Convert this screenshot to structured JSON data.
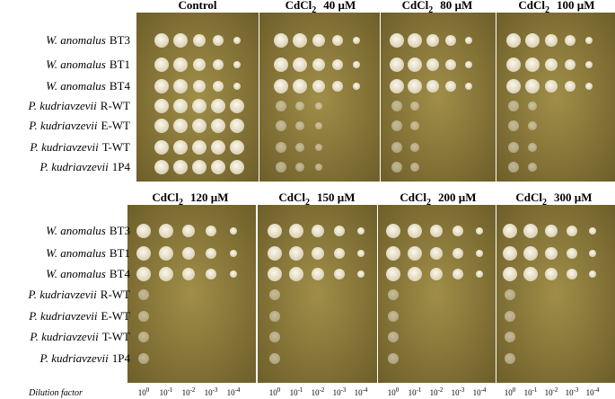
{
  "panels": [
    {
      "label": {
        "text": "Control"
      }
    },
    {
      "label": {
        "compound": "CdCl",
        "subscript": "2",
        "concentration": "40 µM"
      }
    },
    {
      "label": {
        "compound": "CdCl",
        "subscript": "2",
        "concentration": "80 µM"
      }
    },
    {
      "label": {
        "compound": "CdCl",
        "subscript": "2",
        "concentration": "100 µM"
      }
    },
    {
      "label": {
        "compound": "CdCl",
        "subscript": "2",
        "concentration": "120 µM"
      }
    },
    {
      "label": {
        "compound": "CdCl",
        "subscript": "2",
        "concentration": "150 µM"
      }
    },
    {
      "label": {
        "compound": "CdCl",
        "subscript": "2",
        "concentration": "200 µM"
      }
    },
    {
      "label": {
        "compound": "CdCl",
        "subscript": "2",
        "concentration": "300 µM"
      }
    }
  ],
  "strains": [
    {
      "species": "W. anomalus",
      "strain": "BT3"
    },
    {
      "species": "W. anomalus",
      "strain": "BT1"
    },
    {
      "species": "W. anomalus",
      "strain": "BT4"
    },
    {
      "species": "P. kudriavzevii",
      "strain": "R-WT"
    },
    {
      "species": "P. kudriavzevii",
      "strain": "E-WT"
    },
    {
      "species": "P. kudriavzevii",
      "strain": "T-WT"
    },
    {
      "species": "P. kudriavzevii",
      "strain": "1P4"
    }
  ],
  "dilution": {
    "title": "Dilution factor",
    "base": "10",
    "exponents": [
      "0",
      "-1",
      "-2",
      "-3",
      "-4"
    ]
  }
}
